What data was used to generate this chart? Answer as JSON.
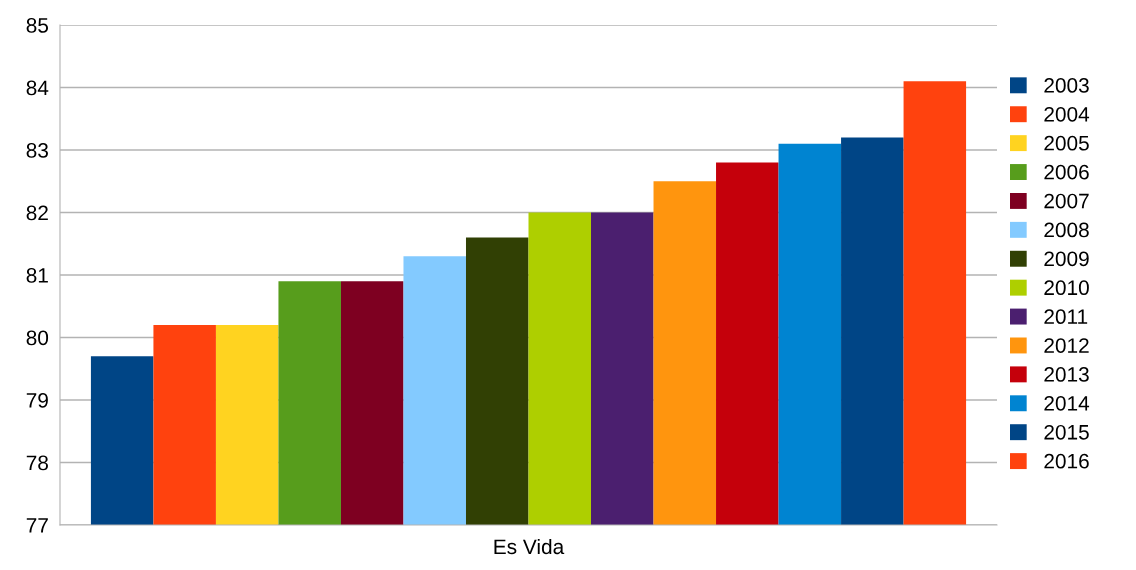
{
  "chart_data": {
    "type": "bar",
    "categories": [
      "Es Vida"
    ],
    "series": [
      {
        "name": "2003",
        "color": "#004586",
        "values": [
          79.7
        ]
      },
      {
        "name": "2004",
        "color": "#ff420e",
        "values": [
          80.2
        ]
      },
      {
        "name": "2005",
        "color": "#ffd320",
        "values": [
          80.2
        ]
      },
      {
        "name": "2006",
        "color": "#579d1c",
        "values": [
          80.9
        ]
      },
      {
        "name": "2007",
        "color": "#7e0021",
        "values": [
          80.9
        ]
      },
      {
        "name": "2008",
        "color": "#83caff",
        "values": [
          81.3
        ]
      },
      {
        "name": "2009",
        "color": "#314004",
        "values": [
          81.6
        ]
      },
      {
        "name": "2010",
        "color": "#aecf00",
        "values": [
          82.0
        ]
      },
      {
        "name": "2011",
        "color": "#4b1f6f",
        "values": [
          82.0
        ]
      },
      {
        "name": "2012",
        "color": "#ff950e",
        "values": [
          82.5
        ]
      },
      {
        "name": "2013",
        "color": "#c5000b",
        "values": [
          82.8
        ]
      },
      {
        "name": "2014",
        "color": "#0084d1",
        "values": [
          83.1
        ]
      },
      {
        "name": "2015",
        "color": "#004586",
        "values": [
          83.2
        ]
      },
      {
        "name": "2016",
        "color": "#ff420e",
        "values": [
          84.1
        ]
      }
    ],
    "ylim": [
      77,
      85
    ],
    "yticks": [
      77,
      78,
      79,
      80,
      81,
      82,
      83,
      84,
      85
    ],
    "grid": "y",
    "legend": "right"
  }
}
